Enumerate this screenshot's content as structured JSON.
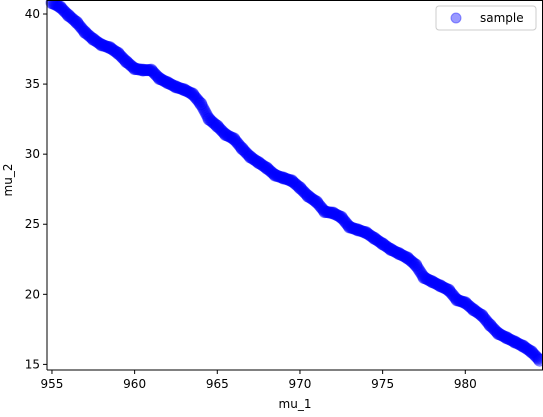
{
  "chart_data": {
    "type": "scatter",
    "title": "",
    "xlabel": "mu_1",
    "ylabel": "mu_2",
    "xlim": [
      954.7,
      984.7
    ],
    "ylim": [
      14.6,
      41.0
    ],
    "xticks": [
      955,
      960,
      965,
      970,
      975,
      980
    ],
    "yticks": [
      15,
      20,
      25,
      30,
      35,
      40
    ],
    "grid": false,
    "legend_position": "top-right",
    "series": [
      {
        "name": "sample",
        "color": "#0000ff",
        "alpha": 0.4,
        "marker": "circle",
        "x": [
          955.0,
          955.5,
          956.0,
          956.5,
          957.0,
          957.5,
          958.0,
          958.5,
          959.0,
          959.5,
          960.0,
          960.5,
          961.0,
          961.5,
          962.0,
          962.5,
          963.0,
          963.5,
          964.0,
          964.5,
          965.0,
          965.5,
          966.0,
          966.5,
          967.0,
          967.5,
          968.0,
          968.5,
          969.0,
          969.5,
          970.0,
          970.5,
          971.0,
          971.5,
          972.0,
          972.5,
          973.0,
          973.5,
          974.0,
          974.5,
          975.0,
          975.5,
          976.0,
          976.5,
          977.0,
          977.5,
          978.0,
          978.5,
          979.0,
          979.5,
          980.0,
          980.5,
          981.0,
          981.5,
          982.0,
          982.5,
          983.0,
          983.5,
          984.0,
          984.5
        ],
        "y": [
          40.8,
          40.5,
          39.9,
          39.4,
          38.7,
          38.2,
          37.8,
          37.6,
          37.2,
          36.6,
          36.1,
          36.0,
          36.0,
          35.4,
          35.1,
          34.8,
          34.6,
          34.3,
          33.6,
          32.5,
          32.0,
          31.4,
          31.1,
          30.4,
          29.8,
          29.4,
          29.0,
          28.5,
          28.3,
          28.1,
          27.6,
          27.0,
          26.6,
          25.9,
          25.8,
          25.5,
          24.8,
          24.6,
          24.4,
          24.0,
          23.6,
          23.2,
          22.9,
          22.6,
          22.1,
          21.2,
          20.9,
          20.6,
          20.3,
          19.6,
          19.4,
          18.9,
          18.5,
          17.8,
          17.2,
          16.9,
          16.6,
          16.3,
          15.9,
          15.3
        ]
      }
    ]
  }
}
